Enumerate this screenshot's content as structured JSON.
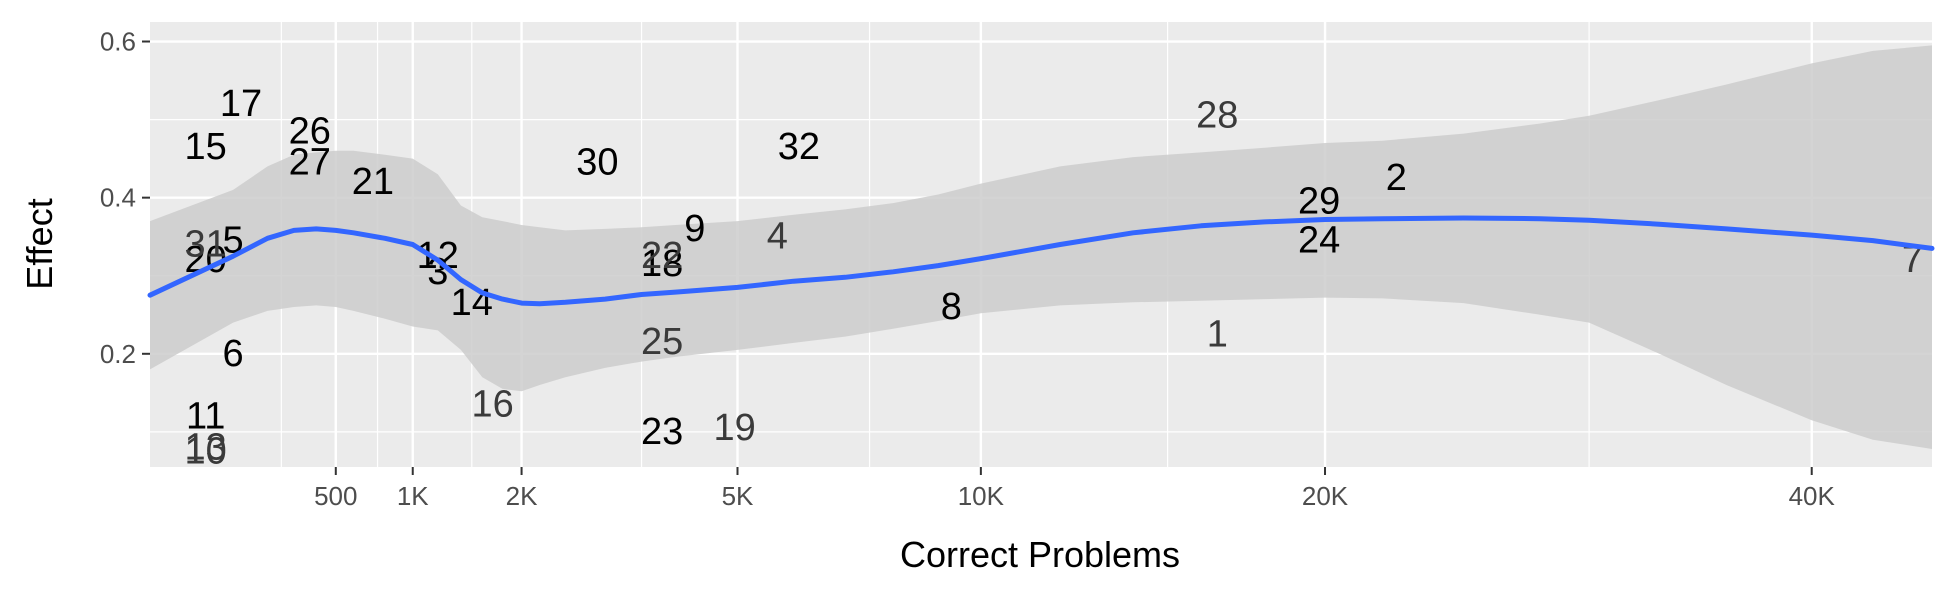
{
  "chart_data": {
    "type": "scatter",
    "xlabel": "Correct Problems",
    "ylabel": "Effect",
    "x_scale": "sqrt",
    "x_range": [
      0,
      46000
    ],
    "y_range": [
      0.055,
      0.625
    ],
    "x_ticks": [
      {
        "value": 500,
        "label": "500"
      },
      {
        "value": 1000,
        "label": "1K"
      },
      {
        "value": 2000,
        "label": "2K"
      },
      {
        "value": 5000,
        "label": "5K"
      },
      {
        "value": 10000,
        "label": "10K"
      },
      {
        "value": 20000,
        "label": "20K"
      },
      {
        "value": 40000,
        "label": "40K"
      }
    ],
    "x_minor_ticks": [
      250,
      750,
      1500,
      3500,
      7500,
      15000,
      30000
    ],
    "y_ticks": [
      {
        "value": 0.2,
        "label": "0.2"
      },
      {
        "value": 0.4,
        "label": "0.4"
      },
      {
        "value": 0.6,
        "label": "0.6"
      }
    ],
    "y_minor_ticks": [
      0.1,
      0.3,
      0.5
    ],
    "grid": true,
    "colors": {
      "panel": "#ebebeb",
      "grid": "#ffffff",
      "ribbon": "#cccccc",
      "smooth_line": "#3366ff",
      "label_dark": "#000000",
      "label_mid": "#3a3a3a"
    },
    "points": [
      {
        "label": "1",
        "x": 16500,
        "y": 0.225
      },
      {
        "label": "2",
        "x": 22500,
        "y": 0.425
      },
      {
        "label": "3",
        "x": 1200,
        "y": 0.305
      },
      {
        "label": "4",
        "x": 5700,
        "y": 0.35
      },
      {
        "label": "5",
        "x": 100,
        "y": 0.345
      },
      {
        "label": "6",
        "x": 100,
        "y": 0.2
      },
      {
        "label": "7",
        "x": 45000,
        "y": 0.32
      },
      {
        "label": "8",
        "x": 9300,
        "y": 0.26
      },
      {
        "label": "9",
        "x": 4300,
        "y": 0.36
      },
      {
        "label": "10",
        "x": 45,
        "y": 0.075
      },
      {
        "label": "11",
        "x": 45,
        "y": 0.12
      },
      {
        "label": "12",
        "x": 1200,
        "y": 0.325
      },
      {
        "label": "13",
        "x": 45,
        "y": 0.08
      },
      {
        "label": "14",
        "x": 1500,
        "y": 0.265
      },
      {
        "label": "15",
        "x": 45,
        "y": 0.465
      },
      {
        "label": "16",
        "x": 1700,
        "y": 0.135
      },
      {
        "label": "17",
        "x": 120,
        "y": 0.52
      },
      {
        "label": "18",
        "x": 3800,
        "y": 0.315
      },
      {
        "label": "19",
        "x": 4950,
        "y": 0.105
      },
      {
        "label": "20",
        "x": 45,
        "y": 0.32
      },
      {
        "label": "21",
        "x": 720,
        "y": 0.42
      },
      {
        "label": "22",
        "x": 3800,
        "y": 0.325
      },
      {
        "label": "23",
        "x": 3800,
        "y": 0.1
      },
      {
        "label": "24",
        "x": 19800,
        "y": 0.345
      },
      {
        "label": "25",
        "x": 3800,
        "y": 0.215
      },
      {
        "label": "26",
        "x": 370,
        "y": 0.485
      },
      {
        "label": "27",
        "x": 370,
        "y": 0.445
      },
      {
        "label": "28",
        "x": 16500,
        "y": 0.505
      },
      {
        "label": "29",
        "x": 19800,
        "y": 0.395
      },
      {
        "label": "30",
        "x": 2900,
        "y": 0.445
      },
      {
        "label": "31",
        "x": 45,
        "y": 0.34
      },
      {
        "label": "32",
        "x": 6100,
        "y": 0.465
      }
    ],
    "smooth": {
      "x": [
        0,
        100,
        200,
        300,
        400,
        500,
        600,
        800,
        1000,
        1200,
        1400,
        1600,
        1800,
        2000,
        2200,
        2500,
        3000,
        3500,
        4000,
        5000,
        6000,
        7000,
        8000,
        9000,
        10000,
        12000,
        14000,
        16000,
        18000,
        20000,
        22000,
        25000,
        28000,
        30000,
        33000,
        36000,
        40000,
        43000,
        46000
      ],
      "y": [
        0.275,
        0.325,
        0.348,
        0.358,
        0.36,
        0.358,
        0.355,
        0.348,
        0.34,
        0.32,
        0.295,
        0.278,
        0.27,
        0.265,
        0.264,
        0.266,
        0.27,
        0.276,
        0.279,
        0.285,
        0.293,
        0.298,
        0.305,
        0.313,
        0.322,
        0.34,
        0.355,
        0.364,
        0.369,
        0.372,
        0.373,
        0.374,
        0.373,
        0.371,
        0.366,
        0.36,
        0.352,
        0.345,
        0.335
      ],
      "lower": [
        0.18,
        0.24,
        0.255,
        0.26,
        0.262,
        0.26,
        0.255,
        0.245,
        0.235,
        0.23,
        0.205,
        0.17,
        0.155,
        0.152,
        0.16,
        0.17,
        0.182,
        0.19,
        0.196,
        0.205,
        0.214,
        0.222,
        0.232,
        0.242,
        0.252,
        0.262,
        0.266,
        0.268,
        0.27,
        0.272,
        0.271,
        0.265,
        0.25,
        0.24,
        0.2,
        0.16,
        0.115,
        0.09,
        0.078
      ],
      "upper": [
        0.37,
        0.41,
        0.44,
        0.455,
        0.458,
        0.46,
        0.46,
        0.455,
        0.45,
        0.43,
        0.39,
        0.375,
        0.37,
        0.365,
        0.362,
        0.358,
        0.36,
        0.362,
        0.365,
        0.37,
        0.378,
        0.385,
        0.393,
        0.404,
        0.418,
        0.44,
        0.452,
        0.458,
        0.464,
        0.47,
        0.473,
        0.482,
        0.495,
        0.505,
        0.525,
        0.545,
        0.572,
        0.588,
        0.595
      ]
    }
  }
}
